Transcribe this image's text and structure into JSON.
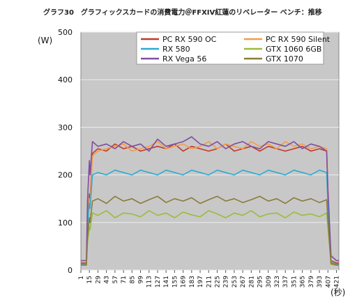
{
  "chart_data": {
    "type": "line",
    "title": "グラフ30　グラフィックスカードの消費電力＠FFXIV紅蓮のリベレーター ベンチ：推移",
    "ylabel": "(W)",
    "xlabel": "(秒)",
    "ylim": [
      0,
      500
    ],
    "yticks": [
      0,
      100,
      200,
      300,
      400,
      500
    ],
    "xlim": [
      1,
      425
    ],
    "xticks": [
      1,
      15,
      29,
      43,
      57,
      71,
      85,
      99,
      113,
      127,
      141,
      155,
      169,
      183,
      197,
      211,
      225,
      239,
      253,
      267,
      281,
      295,
      309,
      323,
      337,
      351,
      365,
      379,
      393,
      407,
      421
    ],
    "grid": true,
    "legend_position": "top-center",
    "series": [
      {
        "name": "PC RX 590 OC",
        "color": "#c0392b",
        "x": [
          1,
          10,
          12,
          15,
          16,
          20,
          29,
          43,
          57,
          71,
          85,
          99,
          113,
          127,
          141,
          155,
          169,
          183,
          197,
          211,
          225,
          239,
          253,
          267,
          281,
          295,
          309,
          323,
          337,
          351,
          365,
          379,
          393,
          405,
          407,
          412,
          421,
          425
        ],
        "y": [
          15,
          15,
          110,
          160,
          150,
          245,
          255,
          250,
          265,
          255,
          260,
          250,
          255,
          260,
          255,
          265,
          250,
          260,
          255,
          250,
          255,
          265,
          250,
          255,
          260,
          250,
          260,
          255,
          250,
          255,
          260,
          250,
          255,
          250,
          160,
          20,
          15,
          15
        ]
      },
      {
        "name": "PC RX 590 Silent",
        "color": "#f39c4a",
        "x": [
          1,
          10,
          12,
          15,
          16,
          20,
          29,
          43,
          57,
          71,
          85,
          99,
          113,
          127,
          141,
          155,
          169,
          183,
          197,
          211,
          225,
          239,
          253,
          267,
          281,
          295,
          309,
          323,
          337,
          351,
          365,
          379,
          393,
          405,
          407,
          412,
          421,
          425
        ],
        "y": [
          12,
          12,
          100,
          150,
          140,
          240,
          250,
          255,
          260,
          265,
          250,
          255,
          260,
          270,
          255,
          260,
          265,
          255,
          260,
          270,
          255,
          265,
          260,
          255,
          270,
          260,
          265,
          255,
          270,
          260,
          265,
          255,
          260,
          255,
          150,
          18,
          12,
          12
        ]
      },
      {
        "name": "RX 580",
        "color": "#2eaad1",
        "x": [
          1,
          10,
          12,
          15,
          16,
          20,
          29,
          43,
          57,
          71,
          85,
          99,
          113,
          127,
          141,
          155,
          169,
          183,
          197,
          211,
          225,
          239,
          253,
          267,
          281,
          295,
          309,
          323,
          337,
          351,
          365,
          379,
          393,
          405,
          407,
          412,
          421,
          425
        ],
        "y": [
          13,
          13,
          95,
          140,
          130,
          200,
          205,
          200,
          210,
          205,
          200,
          210,
          205,
          200,
          210,
          205,
          200,
          210,
          205,
          200,
          210,
          205,
          200,
          210,
          205,
          200,
          210,
          205,
          200,
          210,
          205,
          200,
          210,
          205,
          140,
          16,
          13,
          13
        ]
      },
      {
        "name": "GTX 1060 6GB",
        "color": "#9bbb3c",
        "x": [
          1,
          10,
          12,
          15,
          16,
          20,
          29,
          43,
          57,
          71,
          85,
          99,
          113,
          127,
          141,
          155,
          169,
          183,
          197,
          211,
          225,
          239,
          253,
          267,
          281,
          295,
          309,
          323,
          337,
          351,
          365,
          379,
          393,
          405,
          407,
          412,
          421,
          425
        ],
        "y": [
          10,
          10,
          60,
          90,
          85,
          120,
          115,
          125,
          110,
          120,
          118,
          112,
          125,
          115,
          120,
          110,
          122,
          116,
          112,
          125,
          118,
          110,
          120,
          115,
          125,
          112,
          118,
          120,
          110,
          122,
          115,
          118,
          112,
          120,
          90,
          12,
          10,
          10
        ]
      },
      {
        "name": "RX Vega 56",
        "color": "#7e4ea1",
        "x": [
          1,
          10,
          12,
          15,
          16,
          20,
          29,
          43,
          57,
          71,
          85,
          99,
          113,
          127,
          141,
          155,
          169,
          183,
          197,
          211,
          225,
          239,
          253,
          267,
          281,
          295,
          309,
          323,
          337,
          351,
          365,
          379,
          393,
          405,
          407,
          412,
          421,
          425
        ],
        "y": [
          20,
          20,
          150,
          230,
          200,
          270,
          260,
          265,
          255,
          270,
          260,
          265,
          250,
          275,
          260,
          265,
          270,
          280,
          265,
          260,
          270,
          255,
          265,
          270,
          260,
          255,
          270,
          265,
          260,
          270,
          255,
          265,
          260,
          250,
          170,
          30,
          20,
          20
        ]
      },
      {
        "name": "GTX 1070",
        "color": "#8c7a3a",
        "x": [
          1,
          10,
          12,
          15,
          16,
          20,
          29,
          43,
          57,
          71,
          85,
          99,
          113,
          127,
          141,
          155,
          169,
          183,
          197,
          211,
          225,
          239,
          253,
          267,
          281,
          295,
          309,
          323,
          337,
          351,
          365,
          379,
          393,
          405,
          407,
          412,
          421,
          425
        ],
        "y": [
          11,
          11,
          70,
          110,
          100,
          145,
          150,
          140,
          155,
          145,
          150,
          140,
          148,
          155,
          142,
          150,
          145,
          152,
          140,
          148,
          155,
          145,
          150,
          142,
          148,
          155,
          145,
          150,
          140,
          152,
          145,
          150,
          142,
          148,
          105,
          14,
          11,
          11
        ]
      }
    ]
  }
}
